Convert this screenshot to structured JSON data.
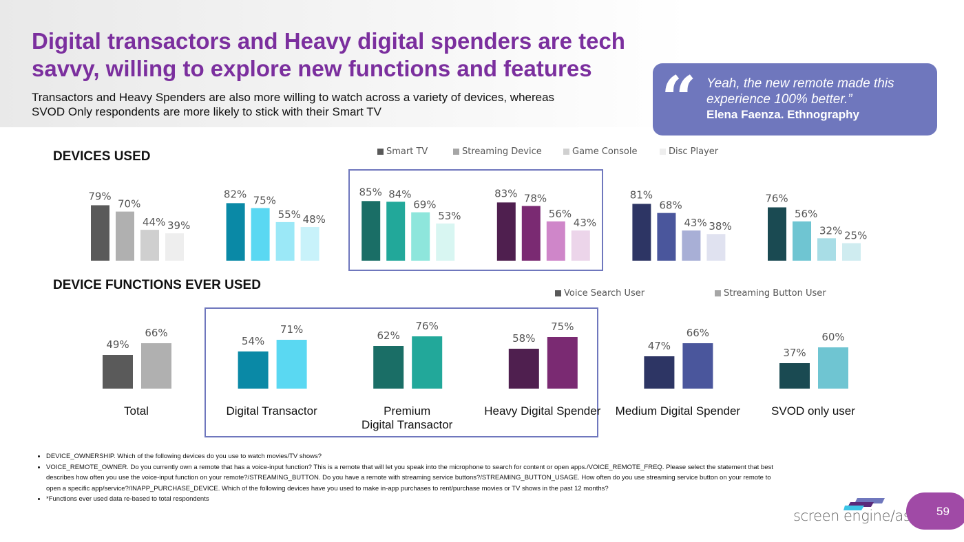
{
  "header": {
    "title": "Digital transactors and Heavy digital spenders are tech savvy, willing to explore new functions and features",
    "subtitle": "Transactors and Heavy Spenders are also more willing to watch across a variety of devices, whereas SVOD Only respondents are more likely to stick with their Smart TV"
  },
  "quote": {
    "icon": "quote-mark-icon",
    "text": "Yeah, the new remote made this experience 100% better.”",
    "author": "Elena Faenza. Ethnography"
  },
  "chart_data": [
    {
      "type": "bar",
      "title": "DEVICES USED",
      "legend_position": "top",
      "categories": [
        "Total",
        "Digital Transactor",
        "Premium Digital Transactor",
        "Heavy Digital Spender",
        "Medium Digital Spender",
        "SVOD only user"
      ],
      "series": [
        {
          "name": "Smart TV",
          "values": [
            79,
            82,
            85,
            83,
            81,
            76
          ]
        },
        {
          "name": "Streaming Device",
          "values": [
            70,
            75,
            84,
            78,
            68,
            56
          ]
        },
        {
          "name": "Game Console",
          "values": [
            44,
            55,
            69,
            56,
            43,
            32
          ]
        },
        {
          "name": "Disc Player",
          "values": [
            39,
            48,
            53,
            43,
            38,
            25
          ]
        }
      ],
      "legend_colors": [
        "#595959",
        "#a6a6a6",
        "#d0d0d0",
        "#eeeeee"
      ],
      "group_colors": [
        [
          "#5a5a5a",
          "#b0b0b0",
          "#cfcfcf",
          "#eeeeee"
        ],
        [
          "#0a89a6",
          "#5ad8f2",
          "#9be8f7",
          "#c8f2fa"
        ],
        [
          "#1a6e66",
          "#22a89a",
          "#8ee6dc",
          "#d8f6f2"
        ],
        [
          "#4f1f4f",
          "#7a2a72",
          "#cf86c9",
          "#ecd5ea"
        ],
        [
          "#2d3564",
          "#4a569c",
          "#a8afd6",
          "#e0e2f0"
        ],
        [
          "#1a4a52",
          "#6fc5d2",
          "#a8dde6",
          "#cfecf0"
        ]
      ],
      "unit": "%"
    },
    {
      "type": "bar",
      "title": "DEVICE FUNCTIONS EVER USED",
      "legend_position": "top-right",
      "categories": [
        "Total",
        "Digital Transactor",
        "Premium Digital Transactor",
        "Heavy Digital Spender",
        "Medium Digital Spender",
        "SVOD only user"
      ],
      "series": [
        {
          "name": "Voice Search User",
          "values": [
            49,
            54,
            62,
            58,
            47,
            37
          ]
        },
        {
          "name": "Streaming Button User",
          "values": [
            66,
            71,
            76,
            75,
            66,
            60
          ]
        }
      ],
      "legend_colors": [
        "#595959",
        "#a6a6a6"
      ],
      "unit": "%"
    }
  ],
  "category_labels": [
    "Total",
    "Digital Transactor",
    "Premium\nDigital Transactor",
    "Heavy Digital Spender",
    "Medium Digital Spender",
    "SVOD only user"
  ],
  "notes": [
    "DEVICE_OWNERSHIP. Which of the following devices do you use to watch movies/TV shows?",
    "VOICE_REMOTE_OWNER. Do you currently own a remote that has a voice-input function? This is a remote that will let you speak into the microphone to search for content or open apps./VOICE_REMOTE_FREQ. Please select the statement that best describes how often you use the voice-input function on your remote?/STREAMING_BUTTON. Do you have a remote with streaming service buttons?/STREAMING_BUTTON_USAGE. How often do you use streaming service button on your remote to open a specific app/service?/INAPP_PURCHASE_DEVICE. Which of the following devices have you used to make in-app purchases to rent/purchase movies or TV shows in the past 12 months?",
    "*Functions ever used data re-based to total respondents"
  ],
  "footer": {
    "logo": "screen engine/asi",
    "page_number": "59"
  }
}
